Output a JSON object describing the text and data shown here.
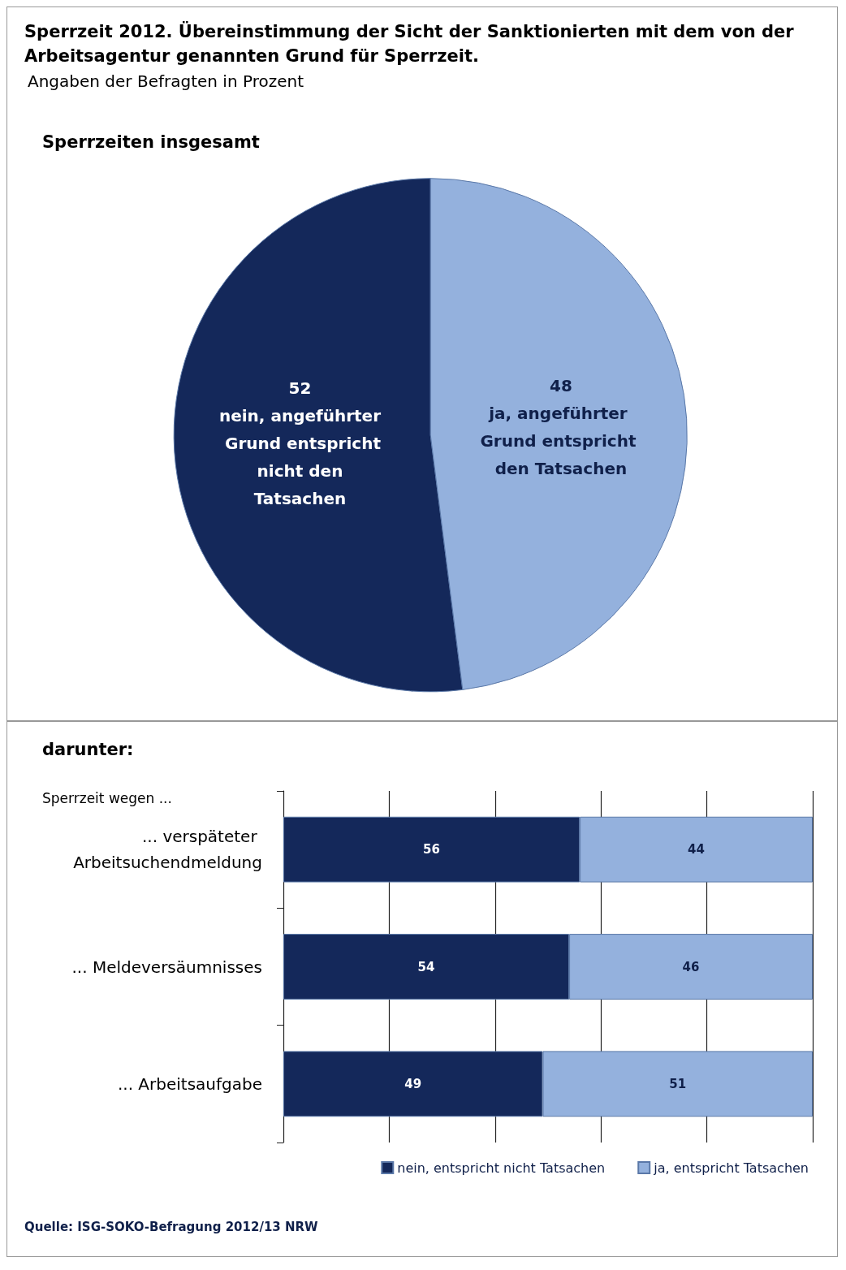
{
  "chart_data": [
    {
      "type": "pie",
      "title": "Sperrzeit 2012. Übereinstimmung der Sicht der Sanktionierten mit dem von der Arbeitsagentur genannten Grund für Sperrzeit.",
      "subtitle": "Angaben der Befragten in Prozent",
      "annotations": [
        "Sperrzeiten insgesamt"
      ],
      "categories": [
        "nein, angeführter Grund entspricht nicht den Tatsachen",
        "ja, angeführter Grund entspricht den Tatsachen"
      ],
      "values": [
        52,
        48
      ],
      "colors": [
        "#14285a",
        "#94b1dd"
      ],
      "data_labels": true,
      "legend": false
    },
    {
      "type": "bar",
      "orientation": "horizontal",
      "stacked": true,
      "title": "darunter:",
      "ylabel": "Sperrzeit wegen ...",
      "categories": [
        "... verspäteter Arbeitsuchendmeldung",
        "... Meldeversäumnisses",
        "... Arbeitsaufgabe"
      ],
      "series": [
        {
          "name": "nein, entspricht nicht Tatsachen",
          "color": "#14285a",
          "values": [
            56,
            54,
            49
          ]
        },
        {
          "name": "ja, entspricht Tatsachen",
          "color": "#94b1dd",
          "values": [
            44,
            46,
            51
          ]
        }
      ],
      "xlim": [
        0,
        100
      ],
      "xticks": [
        {
          "value": 0,
          "label": null
        },
        {
          "value": 20,
          "label": null
        },
        {
          "value": 40,
          "label": null
        },
        {
          "value": 60,
          "label": null
        },
        {
          "value": 80,
          "label": null
        },
        {
          "value": 100,
          "label": null
        }
      ],
      "tick_labels": "y",
      "grid": "x",
      "data_labels": true,
      "legend": "bottom",
      "annotations": [
        "Quelle: ISG-SOKO-Befragung 2012/13 NRW"
      ]
    }
  ]
}
